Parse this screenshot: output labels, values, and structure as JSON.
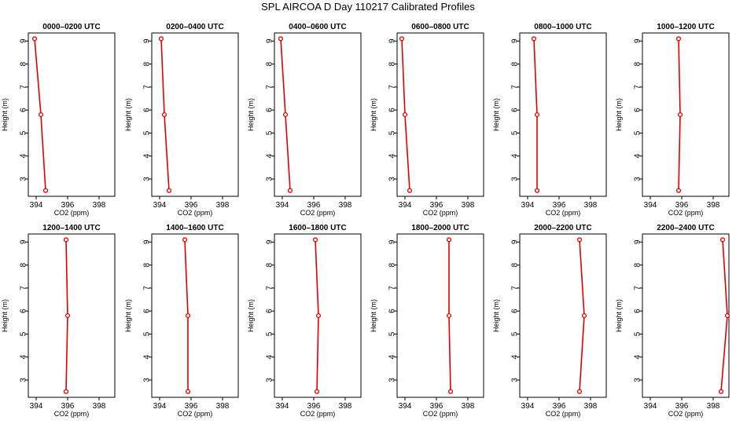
{
  "title": "SPL AIRCOA D  Day 110217  Calibrated Profiles",
  "chart_data": {
    "type": "line",
    "xlabel": "CO2 (ppm)",
    "ylabel": "Height (m)",
    "xlim": [
      393.5,
      399.0
    ],
    "ylim": [
      2.25,
      9.35
    ],
    "xticks": [
      394,
      396,
      398
    ],
    "yticks": [
      3,
      4,
      5,
      6,
      7,
      8,
      9
    ],
    "line_color": "#dd0000",
    "panels": [
      {
        "name": "0000–0200 UTC",
        "points": [
          {
            "x": 393.9,
            "y": 9.1
          },
          {
            "x": 394.3,
            "y": 5.8
          },
          {
            "x": 394.6,
            "y": 2.5
          }
        ]
      },
      {
        "name": "0200–0400 UTC",
        "points": [
          {
            "x": 394.1,
            "y": 9.1
          },
          {
            "x": 394.3,
            "y": 5.8
          },
          {
            "x": 394.6,
            "y": 2.5
          }
        ]
      },
      {
        "name": "0400–0600 UTC",
        "points": [
          {
            "x": 393.9,
            "y": 9.1
          },
          {
            "x": 394.2,
            "y": 5.8
          },
          {
            "x": 394.5,
            "y": 2.5
          }
        ]
      },
      {
        "name": "0600–0800 UTC",
        "points": [
          {
            "x": 393.8,
            "y": 9.1
          },
          {
            "x": 394.0,
            "y": 5.8
          },
          {
            "x": 394.3,
            "y": 2.5
          }
        ]
      },
      {
        "name": "0800–1000 UTC",
        "points": [
          {
            "x": 394.4,
            "y": 9.1
          },
          {
            "x": 394.6,
            "y": 5.8
          },
          {
            "x": 394.6,
            "y": 2.5
          }
        ]
      },
      {
        "name": "1000–1200 UTC",
        "points": [
          {
            "x": 395.8,
            "y": 9.1
          },
          {
            "x": 395.9,
            "y": 5.8
          },
          {
            "x": 395.8,
            "y": 2.5
          }
        ]
      },
      {
        "name": "1200–1400 UTC",
        "points": [
          {
            "x": 395.9,
            "y": 9.1
          },
          {
            "x": 396.0,
            "y": 5.8
          },
          {
            "x": 395.9,
            "y": 2.5
          }
        ]
      },
      {
        "name": "1400–1600 UTC",
        "points": [
          {
            "x": 395.6,
            "y": 9.1
          },
          {
            "x": 395.8,
            "y": 5.8
          },
          {
            "x": 395.8,
            "y": 2.5
          }
        ]
      },
      {
        "name": "1600–1800 UTC",
        "points": [
          {
            "x": 396.1,
            "y": 9.1
          },
          {
            "x": 396.3,
            "y": 5.8
          },
          {
            "x": 396.2,
            "y": 2.5
          }
        ]
      },
      {
        "name": "1800–2000 UTC",
        "points": [
          {
            "x": 396.8,
            "y": 9.1
          },
          {
            "x": 396.8,
            "y": 5.8
          },
          {
            "x": 396.9,
            "y": 2.5
          }
        ]
      },
      {
        "name": "2000–2200 UTC",
        "points": [
          {
            "x": 397.3,
            "y": 9.1
          },
          {
            "x": 397.6,
            "y": 5.8
          },
          {
            "x": 397.3,
            "y": 2.5
          }
        ]
      },
      {
        "name": "2200–2400 UTC",
        "points": [
          {
            "x": 398.6,
            "y": 9.1
          },
          {
            "x": 398.9,
            "y": 5.8
          },
          {
            "x": 398.5,
            "y": 2.5
          }
        ]
      }
    ]
  }
}
